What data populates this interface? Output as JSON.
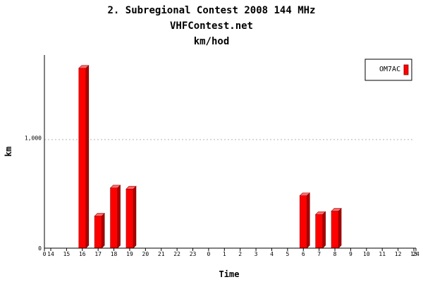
{
  "chart_data": {
    "type": "bar",
    "title": "2. Subregional Contest 2008 144 MHz",
    "subtitle": "VHFContest.net",
    "subtitle2": "km/hod",
    "xlabel": "Time",
    "ylabel": "km",
    "x_ticks": [
      "0",
      "14",
      "15",
      "16",
      "17",
      "18",
      "19",
      "20",
      "21",
      "22",
      "23",
      "0",
      "1",
      "2",
      "3",
      "4",
      "5",
      "6",
      "7",
      "8",
      "9",
      "10",
      "11",
      "12",
      "13",
      "24"
    ],
    "y_ticks": [
      "0",
      "1,000"
    ],
    "ylim": [
      0,
      1750
    ],
    "grid": "horizontal dashed at 1,000",
    "legend_position": "top-right",
    "series": [
      {
        "name": "OM7AC",
        "color": "#ff0000",
        "points": [
          {
            "x": "16",
            "y": 1630
          },
          {
            "x": "17",
            "y": 290
          },
          {
            "x": "18",
            "y": 545
          },
          {
            "x": "19",
            "y": 535
          },
          {
            "x": "6",
            "y": 475
          },
          {
            "x": "7",
            "y": 305
          },
          {
            "x": "8",
            "y": 335
          }
        ]
      }
    ]
  }
}
